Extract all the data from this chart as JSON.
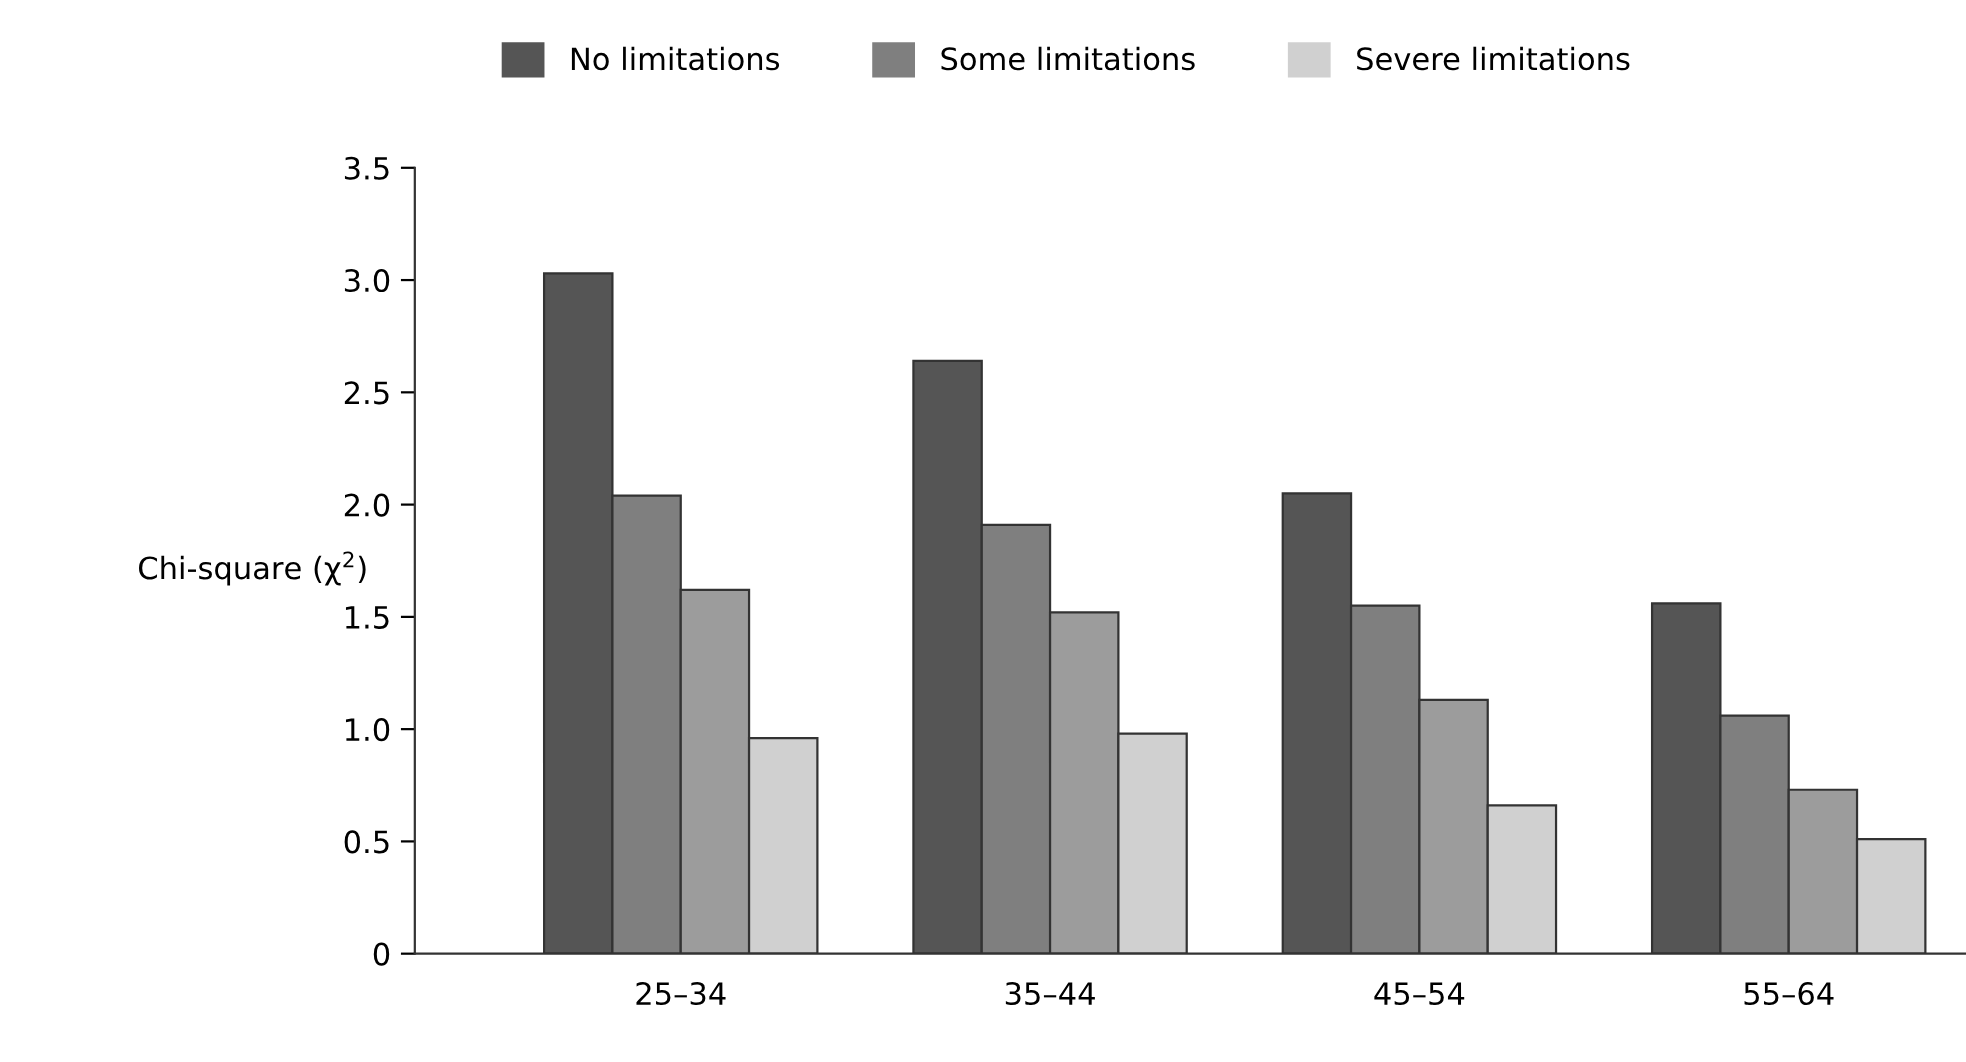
{
  "chart_data": {
    "type": "bar",
    "ylabel": "Chi-square (χ$^{2}$)",
    "categories": [
      "25–34",
      "35–44",
      "45–54",
      "55–64"
    ],
    "series": [
      {
        "name": "No limitations",
        "color": "#555555",
        "values": [
          3.03,
          2.64,
          2.05,
          1.56
        ]
      },
      {
        "name": "Some limitations",
        "color": "#7f7f7f",
        "values": [
          2.04,
          1.91,
          1.55,
          1.06
        ]
      },
      {
        "color": "#9c9c9c",
        "values": [
          1.62,
          1.52,
          1.13,
          0.73
        ]
      },
      {
        "name": "Severe limitations",
        "color": "#d0d0d0",
        "values": [
          0.96,
          0.98,
          0.66,
          0.51
        ]
      }
    ],
    "ylim": [
      0,
      3.5
    ],
    "yticks": [
      {
        "value": 0,
        "label": "0"
      },
      {
        "value": 0.5,
        "label": "0.5"
      },
      {
        "value": 1.0,
        "label": "1.0"
      },
      {
        "value": 1.5,
        "label": "1.5"
      },
      {
        "value": 2.0,
        "label": "2.0"
      },
      {
        "value": 2.5,
        "label": "2.5"
      },
      {
        "value": 3.0,
        "label": "3.0"
      },
      {
        "value": 3.5,
        "label": "3.5"
      }
    ],
    "grid": false,
    "legend": "top"
  }
}
